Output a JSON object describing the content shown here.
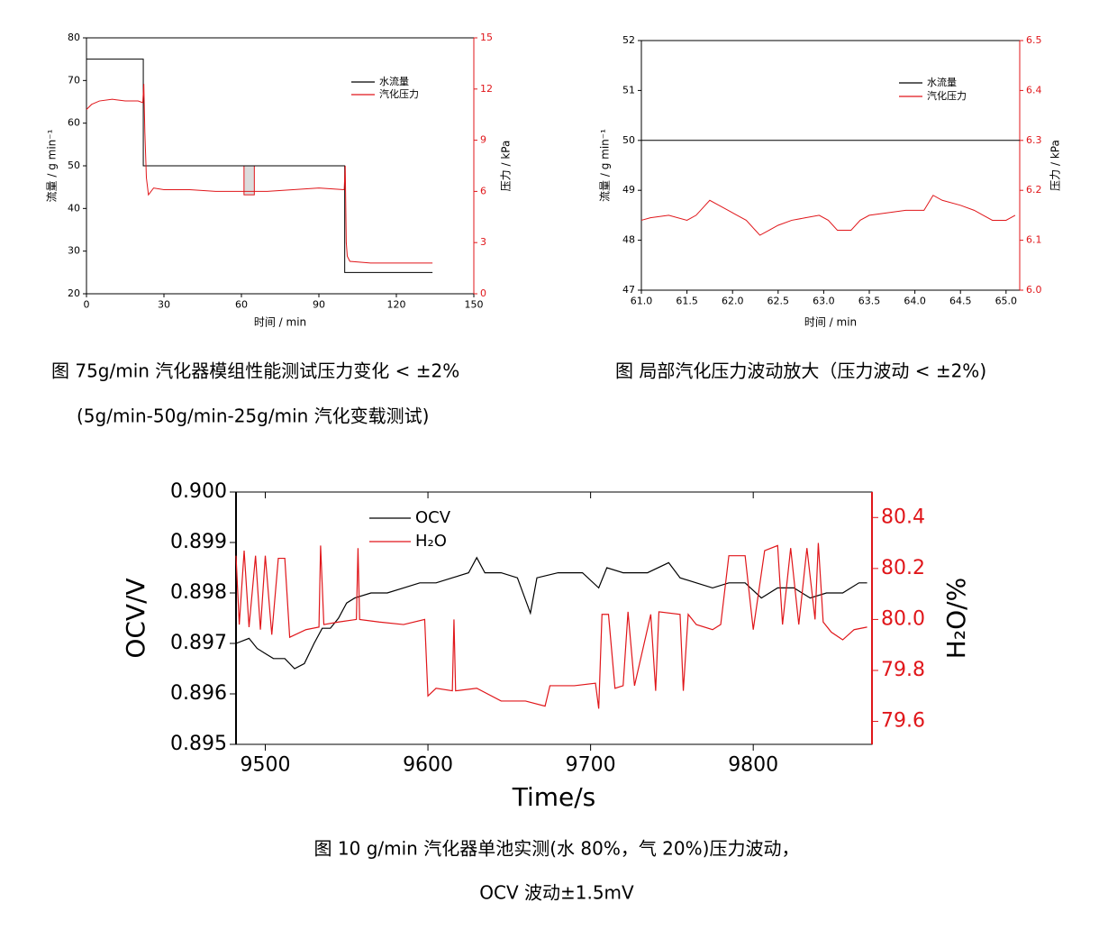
{
  "chart_data": [
    {
      "type": "line",
      "caption": [
        "图  75g/min 汽化器模组性能测试压力变化 < ±2%",
        "(5g/min-50g/min-25g/min  汽化变载测试)"
      ],
      "xlabel": "时间 / min",
      "ylabel": "流量 / g min⁻¹",
      "y2label": "压力 / kPa",
      "xlim": [
        0,
        150
      ],
      "xticks": [
        0,
        30,
        60,
        90,
        120,
        150
      ],
      "ylim": [
        20,
        80
      ],
      "yticks": [
        20,
        30,
        40,
        50,
        60,
        70,
        80
      ],
      "y2lim": [
        0,
        15
      ],
      "y2ticks": [
        0,
        3,
        6,
        9,
        12,
        15
      ],
      "highlight": {
        "x": [
          61,
          65
        ],
        "y2": [
          5.8,
          7.5
        ]
      },
      "series": [
        {
          "name": "水流量",
          "color": "#000000",
          "axis": "y",
          "x": [
            0,
            22,
            22,
            100,
            100,
            134
          ],
          "values": [
            75,
            75,
            50,
            50,
            25,
            25
          ]
        },
        {
          "name": "汽化压力",
          "color": "#e0161a",
          "axis": "y2",
          "x": [
            0,
            2,
            5,
            10,
            15,
            20,
            21.8,
            22.2,
            22.6,
            23.2,
            24,
            26,
            30,
            40,
            50,
            60,
            70,
            80,
            90,
            99.8,
            100.2,
            100.6,
            101,
            102,
            110,
            120,
            134
          ],
          "values": [
            10.8,
            11.1,
            11.3,
            11.4,
            11.3,
            11.3,
            11.2,
            12.3,
            9.5,
            6.8,
            5.8,
            6.2,
            6.1,
            6.1,
            6.0,
            6.0,
            6.0,
            6.1,
            6.2,
            6.1,
            7.5,
            3.0,
            2.2,
            1.9,
            1.8,
            1.8,
            1.8
          ]
        }
      ]
    },
    {
      "type": "line",
      "caption": [
        "图  局部汽化压力波动放大（压力波动 < ±2%)"
      ],
      "xlabel": "时间 / min",
      "ylabel": "流量 / g min⁻¹",
      "y2label": "压力 / kPa",
      "xlim": [
        61,
        65.15
      ],
      "xticks": [
        {
          "value": 61,
          "label": "61.0"
        },
        61.5,
        {
          "value": 62,
          "label": "62.0"
        },
        62.5,
        {
          "value": 63,
          "label": "63.0"
        },
        63.5,
        {
          "value": 64,
          "label": "64.0"
        },
        64.5,
        {
          "value": 65,
          "label": "65.0"
        }
      ],
      "ylim": [
        47,
        52
      ],
      "yticks": [
        47,
        48,
        49,
        50,
        51,
        52
      ],
      "y2lim": [
        6.0,
        6.5
      ],
      "y2ticks": [
        {
          "value": 6,
          "label": "6.0"
        },
        6.1,
        6.2,
        6.3,
        6.4,
        6.5
      ],
      "series": [
        {
          "name": "水流量",
          "color": "#000000",
          "axis": "y",
          "x": [
            61,
            65.15
          ],
          "values": [
            50,
            50
          ]
        },
        {
          "name": "汽化压力",
          "color": "#e0161a",
          "axis": "y2",
          "x": [
            61.0,
            61.1,
            61.3,
            61.5,
            61.6,
            61.7,
            61.75,
            61.85,
            61.95,
            62.05,
            62.15,
            62.25,
            62.3,
            62.4,
            62.5,
            62.65,
            62.8,
            62.95,
            63.05,
            63.15,
            63.3,
            63.4,
            63.5,
            63.7,
            63.9,
            64.1,
            64.2,
            64.3,
            64.5,
            64.65,
            64.75,
            64.85,
            65.0,
            65.1
          ],
          "values": [
            6.14,
            6.145,
            6.15,
            6.14,
            6.15,
            6.17,
            6.18,
            6.17,
            6.16,
            6.15,
            6.14,
            6.12,
            6.11,
            6.12,
            6.13,
            6.14,
            6.145,
            6.15,
            6.14,
            6.12,
            6.12,
            6.14,
            6.15,
            6.155,
            6.16,
            6.16,
            6.19,
            6.18,
            6.17,
            6.16,
            6.15,
            6.14,
            6.14,
            6.15
          ]
        }
      ]
    },
    {
      "type": "line",
      "caption": [
        "图  10 g/min 汽化器单池实测(水 80%，气 20%)压力波动，",
        "OCV 波动±1.5mV"
      ],
      "xlabel": "Time/s",
      "ylabel": "OCV/V",
      "y2label": "H₂O/%",
      "xlim": [
        9482,
        9873
      ],
      "xticks": [
        9500,
        9600,
        9700,
        9800
      ],
      "ylim": [
        0.895,
        0.9
      ],
      "yticks": [
        0.895,
        0.896,
        0.897,
        0.898,
        0.899,
        {
          "value": 0.9,
          "label": "0.900"
        }
      ],
      "y2lim": [
        79.51,
        80.5
      ],
      "y2ticks": [
        79.6,
        79.8,
        {
          "value": 80,
          "label": "80.0"
        },
        80.2,
        80.4
      ],
      "series": [
        {
          "name": "OCV",
          "color": "#000000",
          "axis": "y",
          "x": [
            9482,
            9490,
            9495,
            9500,
            9505,
            9512,
            9518,
            9524,
            9530,
            9535,
            9540,
            9545,
            9550,
            9555,
            9565,
            9575,
            9585,
            9595,
            9605,
            9615,
            9625,
            9630,
            9635,
            9645,
            9655,
            9663,
            9667,
            9680,
            9695,
            9705,
            9710,
            9720,
            9735,
            9748,
            9755,
            9765,
            9775,
            9785,
            9795,
            9805,
            9815,
            9825,
            9835,
            9845,
            9855,
            9865,
            9870
          ],
          "values": [
            0.897,
            0.8971,
            0.8969,
            0.8968,
            0.8967,
            0.8967,
            0.8965,
            0.8966,
            0.897,
            0.8973,
            0.8973,
            0.8975,
            0.8978,
            0.8979,
            0.898,
            0.898,
            0.8981,
            0.8982,
            0.8982,
            0.8983,
            0.8984,
            0.8987,
            0.8984,
            0.8984,
            0.8983,
            0.8976,
            0.8983,
            0.8984,
            0.8984,
            0.8981,
            0.8985,
            0.8984,
            0.8984,
            0.8986,
            0.8983,
            0.8982,
            0.8981,
            0.8982,
            0.8982,
            0.8979,
            0.8981,
            0.8981,
            0.8979,
            0.898,
            0.898,
            0.8982,
            0.8982
          ]
        },
        {
          "name": "H₂O",
          "color": "#e0161a",
          "axis": "y2",
          "x": [
            9482,
            9484,
            9487,
            9490,
            9494,
            9497,
            9500,
            9504,
            9508,
            9512,
            9515,
            9525,
            9533,
            9534,
            9536,
            9545,
            9556,
            9557,
            9558,
            9570,
            9585,
            9598,
            9600,
            9605,
            9615,
            9616,
            9617,
            9630,
            9645,
            9660,
            9672,
            9675,
            9690,
            9703,
            9705,
            9707,
            9711,
            9715,
            9720,
            9723,
            9727,
            9737,
            9740,
            9742,
            9755,
            9757,
            9760,
            9765,
            9775,
            9780,
            9785,
            9795,
            9800,
            9807,
            9815,
            9818,
            9823,
            9828,
            9833,
            9838,
            9840,
            9843,
            9848,
            9855,
            9862,
            9870
          ],
          "values": [
            80.25,
            79.98,
            80.27,
            79.97,
            80.25,
            79.96,
            80.25,
            79.94,
            80.24,
            80.24,
            79.93,
            79.96,
            79.97,
            80.29,
            79.98,
            79.99,
            80.0,
            80.28,
            80.0,
            79.99,
            79.98,
            80.0,
            79.7,
            79.73,
            79.72,
            80.0,
            79.72,
            79.73,
            79.68,
            79.68,
            79.66,
            79.74,
            79.74,
            79.75,
            79.65,
            80.02,
            80.02,
            79.73,
            79.74,
            80.03,
            79.74,
            80.02,
            79.72,
            80.03,
            80.02,
            79.72,
            80.02,
            79.98,
            79.96,
            79.98,
            80.25,
            80.25,
            79.96,
            80.27,
            80.29,
            79.98,
            80.28,
            79.98,
            80.28,
            80.0,
            80.3,
            79.99,
            79.95,
            79.92,
            79.96,
            79.97
          ]
        }
      ]
    }
  ]
}
